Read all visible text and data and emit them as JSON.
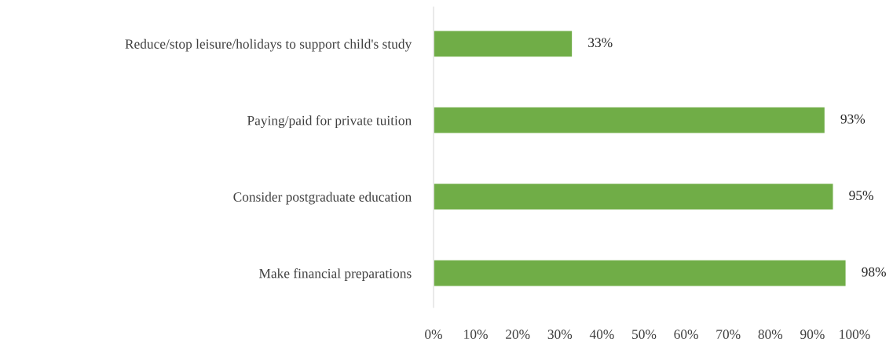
{
  "chart_data": {
    "type": "bar",
    "orientation": "horizontal",
    "categories": [
      "Reduce/stop leisure/holidays to support child's study",
      "Paying/paid for private tuition",
      "Consider postgraduate education",
      "Make financial preparations"
    ],
    "values": [
      33,
      93,
      95,
      98
    ],
    "value_labels": [
      "33%",
      "93%",
      "95%",
      "98%"
    ],
    "color": "#70ad47",
    "xlim": [
      0,
      100
    ],
    "xticks": [
      {
        "value": 0,
        "label": "0%"
      },
      {
        "value": 10,
        "label": "10%"
      },
      {
        "value": 20,
        "label": "20%"
      },
      {
        "value": 30,
        "label": "30%"
      },
      {
        "value": 40,
        "label": "40%"
      },
      {
        "value": 50,
        "label": "50%"
      },
      {
        "value": 60,
        "label": "60%"
      },
      {
        "value": 70,
        "label": "70%"
      },
      {
        "value": 80,
        "label": "80%"
      },
      {
        "value": 90,
        "label": "90%"
      },
      {
        "value": 100,
        "label": "100%"
      }
    ],
    "grid": false,
    "legend": false
  }
}
